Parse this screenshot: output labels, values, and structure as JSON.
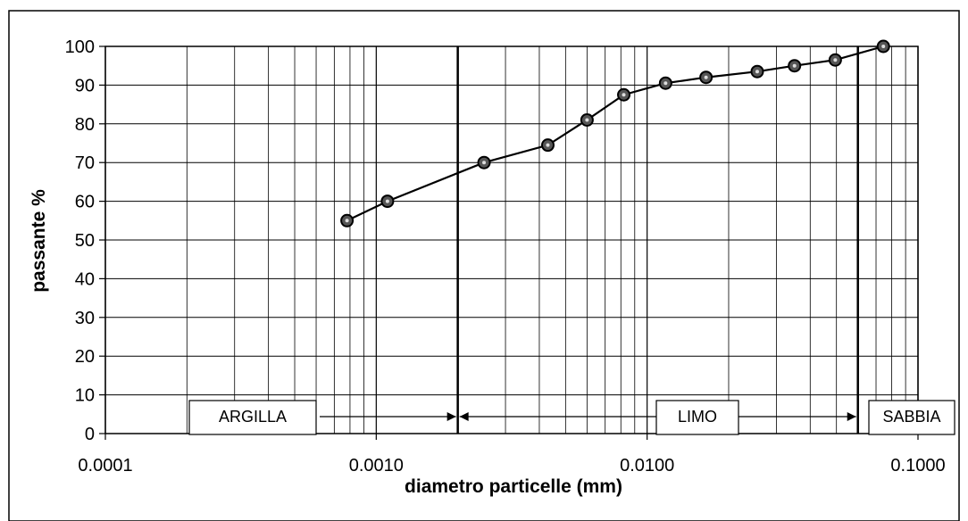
{
  "chart_data": {
    "type": "scatter",
    "xlabel": "diametro particelle (mm)",
    "ylabel": "passante %",
    "x_scale": "log",
    "xlim": [
      0.0001,
      0.1
    ],
    "ylim": [
      0,
      100
    ],
    "grid": true,
    "x_tick_labels": [
      "0.0001",
      "0.0010",
      "0.0100",
      "0.1000"
    ],
    "y_tick_labels": [
      "0",
      "10",
      "20",
      "30",
      "40",
      "50",
      "60",
      "70",
      "80",
      "90",
      "100"
    ],
    "series": [
      {
        "points": [
          {
            "x": 0.00078,
            "y": 55
          },
          {
            "x": 0.0011,
            "y": 60
          },
          {
            "x": 0.0025,
            "y": 70
          },
          {
            "x": 0.0043,
            "y": 74.5
          },
          {
            "x": 0.006,
            "y": 81
          },
          {
            "x": 0.0082,
            "y": 87.5
          },
          {
            "x": 0.0117,
            "y": 90.5
          },
          {
            "x": 0.0165,
            "y": 92
          },
          {
            "x": 0.0255,
            "y": 93.5
          },
          {
            "x": 0.035,
            "y": 95
          },
          {
            "x": 0.0495,
            "y": 96.5
          },
          {
            "x": 0.0745,
            "y": 100
          }
        ]
      }
    ],
    "boundaries": [
      0.002,
      0.06
    ],
    "zones": [
      {
        "label": "ARGILLA",
        "from": 0.0001,
        "to": 0.002
      },
      {
        "label": "LIMO",
        "from": 0.002,
        "to": 0.06
      },
      {
        "label": "SABBIA",
        "from": 0.06,
        "to": 0.1
      }
    ],
    "colors": {
      "line": "#000000",
      "marker_fill": "#555555",
      "grid": "#000000"
    }
  }
}
